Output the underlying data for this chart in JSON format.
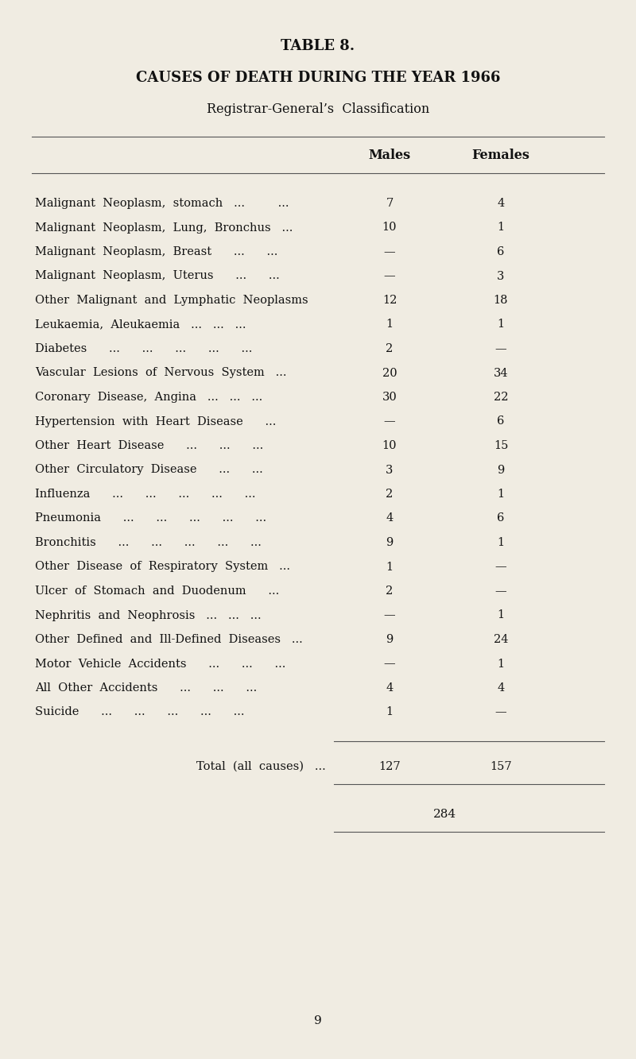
{
  "title1": "TABLE 8.",
  "title2": "CAUSES OF DEATH DURING THE YEAR 1966",
  "subtitle": "Registrar-General’s  Classification",
  "col_headers": [
    "Males",
    "Females"
  ],
  "rows": [
    {
      "cause": "Malignant  Neoplasm,  stomach   ...         ...",
      "males": "7",
      "females": "4"
    },
    {
      "cause": "Malignant  Neoplasm,  Lung,  Bronchus   ...",
      "males": "10",
      "females": "1"
    },
    {
      "cause": "Malignant  Neoplasm,  Breast      ...      ...",
      "males": "—",
      "females": "6"
    },
    {
      "cause": "Malignant  Neoplasm,  Uterus      ...      ...",
      "males": "—",
      "females": "3"
    },
    {
      "cause": "Other  Malignant  and  Lymphatic  Neoplasms",
      "males": "12",
      "females": "18"
    },
    {
      "cause": "Leukaemia,  Aleukaemia   ...   ...   ...",
      "males": "1",
      "females": "1"
    },
    {
      "cause": "Diabetes      ...      ...      ...      ...      ...",
      "males": "2",
      "females": "—"
    },
    {
      "cause": "Vascular  Lesions  of  Nervous  System   ...",
      "males": "20",
      "females": "34"
    },
    {
      "cause": "Coronary  Disease,  Angina   ...   ...   ...",
      "males": "30",
      "females": "22"
    },
    {
      "cause": "Hypertension  with  Heart  Disease      ...",
      "males": "—",
      "females": "6"
    },
    {
      "cause": "Other  Heart  Disease      ...      ...      ...",
      "males": "10",
      "females": "15"
    },
    {
      "cause": "Other  Circulatory  Disease      ...      ...",
      "males": "3",
      "females": "9"
    },
    {
      "cause": "Influenza      ...      ...      ...      ...      ...",
      "males": "2",
      "females": "1"
    },
    {
      "cause": "Pneumonia      ...      ...      ...      ...      ...",
      "males": "4",
      "females": "6"
    },
    {
      "cause": "Bronchitis      ...      ...      ...      ...      ...",
      "males": "9",
      "females": "1"
    },
    {
      "cause": "Other  Disease  of  Respiratory  System   ...",
      "males": "1",
      "females": "—"
    },
    {
      "cause": "Ulcer  of  Stomach  and  Duodenum      ...",
      "males": "2",
      "females": "—"
    },
    {
      "cause": "Nephritis  and  Neophrosis   ...   ...   ...",
      "males": "—",
      "females": "1"
    },
    {
      "cause": "Other  Defined  and  Ill-Defined  Diseases   ...",
      "males": "9",
      "females": "24"
    },
    {
      "cause": "Motor  Vehicle  Accidents      ...      ...      ...",
      "males": "—",
      "females": "1"
    },
    {
      "cause": "All  Other  Accidents      ...      ...      ...",
      "males": "4",
      "females": "4"
    },
    {
      "cause": "Suicide      ...      ...      ...      ...      ...",
      "males": "1",
      "females": "—"
    }
  ],
  "total_label": "Total  (all  causes)   ...",
  "total_males": "127",
  "total_females": "157",
  "grand_total": "284",
  "page_number": "9",
  "bg_color": "#f0ece2",
  "text_color": "#111111",
  "line_color": "#555555"
}
